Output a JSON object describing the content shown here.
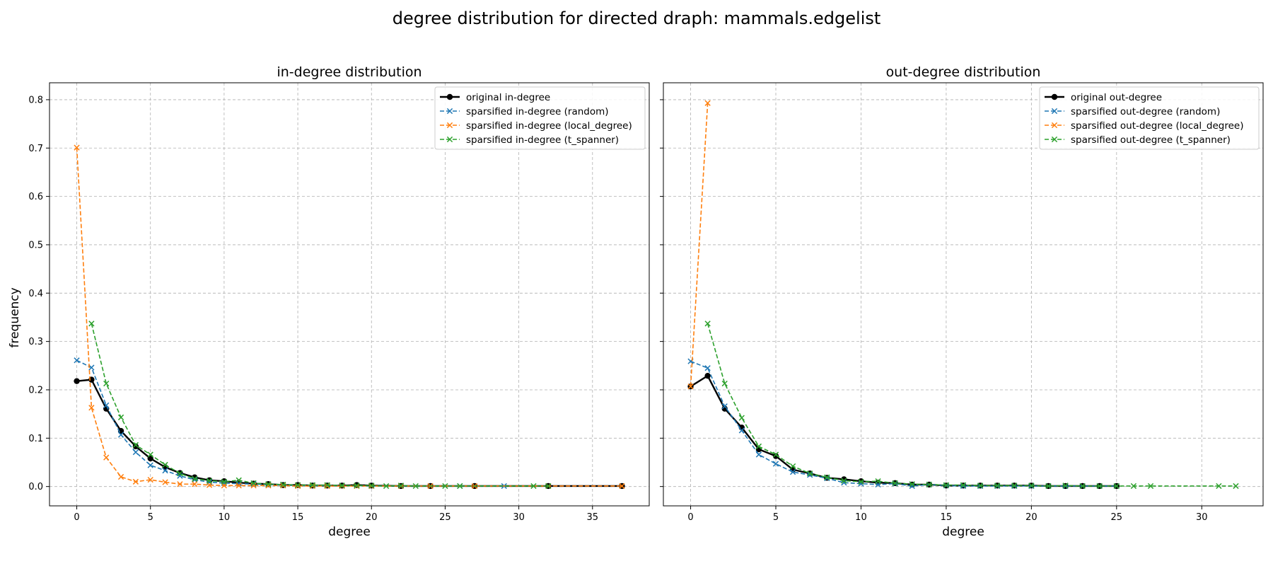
{
  "suptitle": "degree distribution for directed draph: mammals.edgelist",
  "ylabel": "frequency",
  "colors": {
    "original": "#000000",
    "random": "#1f77b4",
    "local_degree": "#ff7f0e",
    "t_spanner": "#2ca02c"
  },
  "chart_data": [
    {
      "type": "line",
      "title": "in-degree distribution",
      "xlabel": "degree",
      "ylabel": "frequency",
      "xlim": [
        -1.85,
        38.85
      ],
      "ylim": [
        -0.04,
        0.835
      ],
      "xticks": [
        0,
        5,
        10,
        15,
        20,
        25,
        30,
        35
      ],
      "yticks": [
        0.0,
        0.1,
        0.2,
        0.3,
        0.4,
        0.5,
        0.6,
        0.7,
        0.8
      ],
      "grid": true,
      "legend_position": "top-right",
      "series": [
        {
          "name": "original in-degree",
          "color_key": "original",
          "style": "solid",
          "marker": "circle",
          "x": [
            0,
            1,
            2,
            3,
            4,
            5,
            6,
            7,
            8,
            9,
            10,
            11,
            12,
            13,
            14,
            15,
            16,
            17,
            18,
            19,
            20,
            22,
            24,
            27,
            32,
            37
          ],
          "y": [
            0.218,
            0.221,
            0.161,
            0.115,
            0.083,
            0.058,
            0.04,
            0.028,
            0.019,
            0.013,
            0.011,
            0.008,
            0.006,
            0.005,
            0.003,
            0.003,
            0.002,
            0.002,
            0.002,
            0.003,
            0.002,
            0.001,
            0.001,
            0.001,
            0.001,
            0.001
          ]
        },
        {
          "name": "sparsified in-degree (random)",
          "color_key": "random",
          "style": "dashed",
          "marker": "x",
          "x": [
            0,
            1,
            2,
            3,
            4,
            5,
            6,
            7,
            8,
            9,
            10,
            11,
            12,
            13,
            14,
            15,
            16,
            17,
            18,
            19,
            20,
            22,
            24,
            26,
            29
          ],
          "y": [
            0.261,
            0.246,
            0.168,
            0.107,
            0.071,
            0.044,
            0.033,
            0.022,
            0.014,
            0.009,
            0.007,
            0.006,
            0.005,
            0.004,
            0.003,
            0.002,
            0.002,
            0.002,
            0.002,
            0.002,
            0.001,
            0.001,
            0.001,
            0.001,
            0.001
          ]
        },
        {
          "name": "sparsified in-degree (local_degree)",
          "color_key": "local_degree",
          "style": "dashed",
          "marker": "x",
          "x": [
            0,
            1,
            2,
            3,
            4,
            5,
            6,
            7,
            8,
            9,
            10,
            11,
            12,
            13,
            14,
            15,
            16,
            17,
            18,
            19,
            20,
            22,
            24,
            27,
            32,
            37
          ],
          "y": [
            0.701,
            0.163,
            0.06,
            0.02,
            0.01,
            0.014,
            0.009,
            0.005,
            0.005,
            0.003,
            0.002,
            0.002,
            0.002,
            0.002,
            0.002,
            0.001,
            0.001,
            0.001,
            0.001,
            0.001,
            0.001,
            0.001,
            0.001,
            0.001,
            0.001,
            0.001
          ]
        },
        {
          "name": "sparsified in-degree (t_spanner)",
          "color_key": "t_spanner",
          "style": "dashed",
          "marker": "x",
          "x": [
            1,
            2,
            3,
            4,
            5,
            6,
            7,
            8,
            9,
            10,
            11,
            12,
            13,
            14,
            15,
            16,
            17,
            18,
            19,
            20,
            21,
            22,
            23,
            25,
            26,
            31,
            32
          ],
          "y": [
            0.337,
            0.213,
            0.143,
            0.086,
            0.066,
            0.045,
            0.027,
            0.016,
            0.012,
            0.01,
            0.013,
            0.007,
            0.005,
            0.004,
            0.003,
            0.003,
            0.003,
            0.002,
            0.002,
            0.002,
            0.001,
            0.002,
            0.001,
            0.001,
            0.001,
            0.001,
            0.001
          ]
        }
      ]
    },
    {
      "type": "line",
      "title": "out-degree distribution",
      "xlabel": "degree",
      "ylabel": "",
      "xlim": [
        -1.6,
        33.6
      ],
      "ylim": [
        -0.04,
        0.835
      ],
      "xticks": [
        0,
        5,
        10,
        15,
        20,
        25,
        30
      ],
      "yticks": [
        0.0,
        0.1,
        0.2,
        0.3,
        0.4,
        0.5,
        0.6,
        0.7,
        0.8
      ],
      "grid": true,
      "legend_position": "top-right",
      "series": [
        {
          "name": "original out-degree",
          "color_key": "original",
          "style": "solid",
          "marker": "circle",
          "x": [
            0,
            1,
            2,
            3,
            4,
            5,
            6,
            7,
            8,
            9,
            10,
            11,
            12,
            13,
            14,
            15,
            16,
            17,
            18,
            19,
            20,
            21,
            22,
            23,
            24,
            25
          ],
          "y": [
            0.207,
            0.229,
            0.161,
            0.122,
            0.077,
            0.063,
            0.035,
            0.027,
            0.018,
            0.015,
            0.011,
            0.008,
            0.007,
            0.004,
            0.004,
            0.002,
            0.002,
            0.002,
            0.002,
            0.002,
            0.002,
            0.001,
            0.001,
            0.001,
            0.001,
            0.001
          ]
        },
        {
          "name": "sparsified out-degree (random)",
          "color_key": "random",
          "style": "dashed",
          "marker": "x",
          "x": [
            0,
            1,
            2,
            3,
            4,
            5,
            6,
            7,
            8,
            9,
            10,
            11,
            12,
            13,
            14,
            15,
            16,
            17,
            18,
            19,
            20,
            21,
            22,
            23,
            24,
            25
          ],
          "y": [
            0.259,
            0.245,
            0.166,
            0.116,
            0.066,
            0.047,
            0.03,
            0.024,
            0.017,
            0.008,
            0.006,
            0.004,
            0.006,
            0.001,
            0.004,
            0.002,
            0.001,
            0.001,
            0.001,
            0.001,
            0.001,
            0.001,
            0.001,
            0.001,
            0.001,
            0.001
          ]
        },
        {
          "name": "sparsified out-degree (local_degree)",
          "color_key": "local_degree",
          "style": "dashed",
          "marker": "x",
          "x": [
            0,
            1
          ],
          "y": [
            0.207,
            0.793
          ]
        },
        {
          "name": "sparsified out-degree (t_spanner)",
          "color_key": "t_spanner",
          "style": "dashed",
          "marker": "x",
          "x": [
            1,
            2,
            3,
            4,
            5,
            6,
            7,
            8,
            9,
            10,
            11,
            12,
            13,
            14,
            15,
            16,
            17,
            18,
            19,
            20,
            21,
            22,
            23,
            24,
            25,
            26,
            27,
            31,
            32
          ],
          "y": [
            0.337,
            0.213,
            0.142,
            0.083,
            0.066,
            0.042,
            0.027,
            0.019,
            0.012,
            0.01,
            0.011,
            0.007,
            0.005,
            0.004,
            0.003,
            0.003,
            0.002,
            0.002,
            0.002,
            0.002,
            0.001,
            0.002,
            0.001,
            0.001,
            0.001,
            0.001,
            0.001,
            0.001,
            0.001
          ]
        }
      ]
    }
  ]
}
